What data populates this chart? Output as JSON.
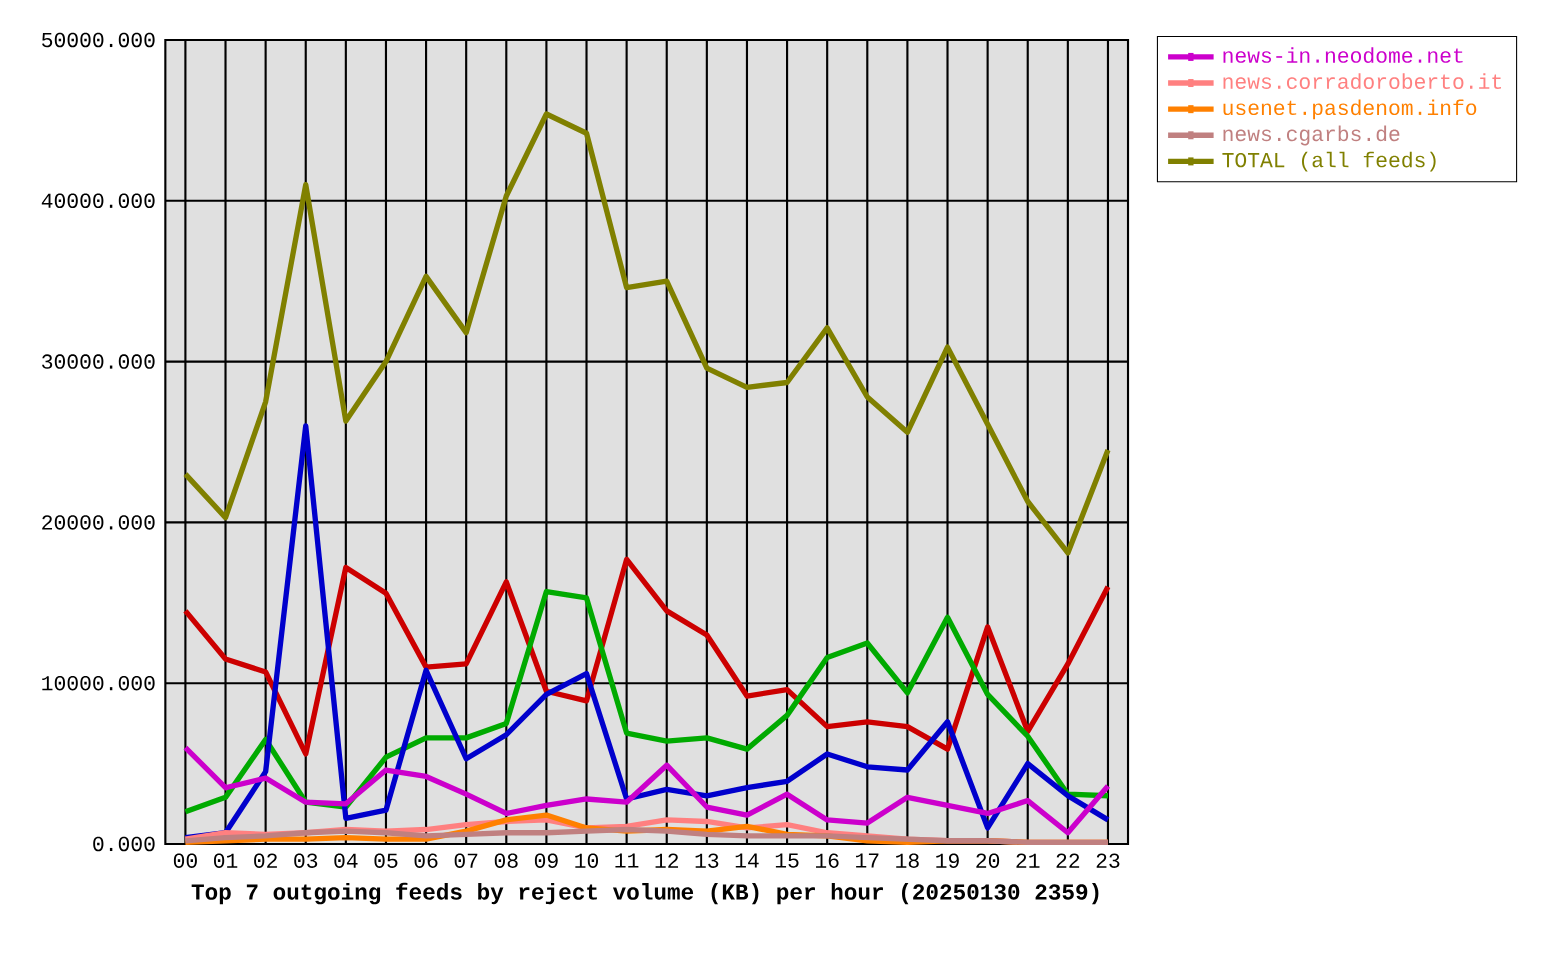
{
  "chart_data": {
    "type": "line",
    "title": "Top 7 outgoing feeds by reject volume (KB) per hour (20250130 2359)",
    "categories": [
      "00",
      "01",
      "02",
      "03",
      "04",
      "05",
      "06",
      "07",
      "08",
      "09",
      "10",
      "11",
      "12",
      "13",
      "14",
      "15",
      "16",
      "17",
      "18",
      "19",
      "20",
      "21",
      "22",
      "23"
    ],
    "series": [
      {
        "color": "#cc0000",
        "values": [
          14500,
          11500,
          10700,
          5600,
          17200,
          15600,
          11000,
          11200,
          16300,
          9500,
          8900,
          17700,
          14500,
          13000,
          9200,
          9600,
          7300,
          7600,
          7300,
          5900,
          13500,
          7000,
          11200,
          16000
        ]
      },
      {
        "color": "#00aa00",
        "values": [
          2000,
          2900,
          6500,
          2600,
          2300,
          5400,
          6600,
          6600,
          7500,
          15700,
          15300,
          6900,
          6400,
          6600,
          5900,
          8000,
          11600,
          12500,
          9400,
          14100,
          9300,
          6700,
          3100,
          3000
        ]
      },
      {
        "color": "#0000cc",
        "values": [
          400,
          700,
          4500,
          26000,
          1600,
          2100,
          10800,
          5300,
          6800,
          9300,
          10600,
          2800,
          3400,
          3000,
          3500,
          3900,
          5600,
          4800,
          4600,
          7600,
          1000,
          5000,
          3000,
          1500
        ]
      },
      {
        "name": "news-in.neodome.net",
        "color": "#cc00cc",
        "values": [
          6000,
          3500,
          4100,
          2600,
          2500,
          4600,
          4200,
          3100,
          1900,
          2400,
          2800,
          2600,
          4900,
          2300,
          1800,
          3100,
          1500,
          1300,
          2900,
          2400,
          1900,
          2700,
          700,
          3600
        ]
      },
      {
        "name": "news.corradoroberto.it",
        "color": "#ff8080",
        "values": [
          300,
          700,
          600,
          700,
          900,
          800,
          900,
          1200,
          1400,
          1500,
          1000,
          1100,
          1500,
          1400,
          1000,
          1200,
          700,
          500,
          300,
          200,
          200,
          100,
          100,
          100
        ]
      },
      {
        "name": "usenet.pasdenom.info",
        "color": "#ff8000",
        "values": [
          100,
          200,
          300,
          300,
          400,
          300,
          300,
          800,
          1500,
          1800,
          1000,
          800,
          900,
          800,
          1100,
          600,
          500,
          200,
          100,
          200,
          200,
          100,
          100,
          100
        ]
      },
      {
        "name": "news.cgarbs.de",
        "color": "#c08080",
        "values": [
          200,
          400,
          500,
          700,
          800,
          700,
          500,
          600,
          700,
          700,
          800,
          900,
          800,
          600,
          500,
          500,
          500,
          400,
          300,
          200,
          200,
          100,
          100,
          100
        ]
      },
      {
        "name": "TOTAL (all feeds)",
        "color": "#808000",
        "values": [
          23000,
          20300,
          27500,
          41000,
          26300,
          30000,
          35300,
          31800,
          40300,
          45400,
          44200,
          34600,
          35000,
          29600,
          28400,
          28700,
          32100,
          27800,
          25600,
          30900,
          26100,
          21300,
          18100,
          24500
        ]
      }
    ],
    "ylim": [
      0,
      50000
    ],
    "yticks": [
      {
        "value": 0,
        "label": "0.000"
      },
      {
        "value": 10000,
        "label": "10000.000"
      },
      {
        "value": 20000,
        "label": "20000.000"
      },
      {
        "value": 30000,
        "label": "30000.000"
      },
      {
        "value": 40000,
        "label": "40000.000"
      },
      {
        "value": 50000,
        "label": "50000.000"
      }
    ],
    "grid": true,
    "legend": "top right"
  }
}
